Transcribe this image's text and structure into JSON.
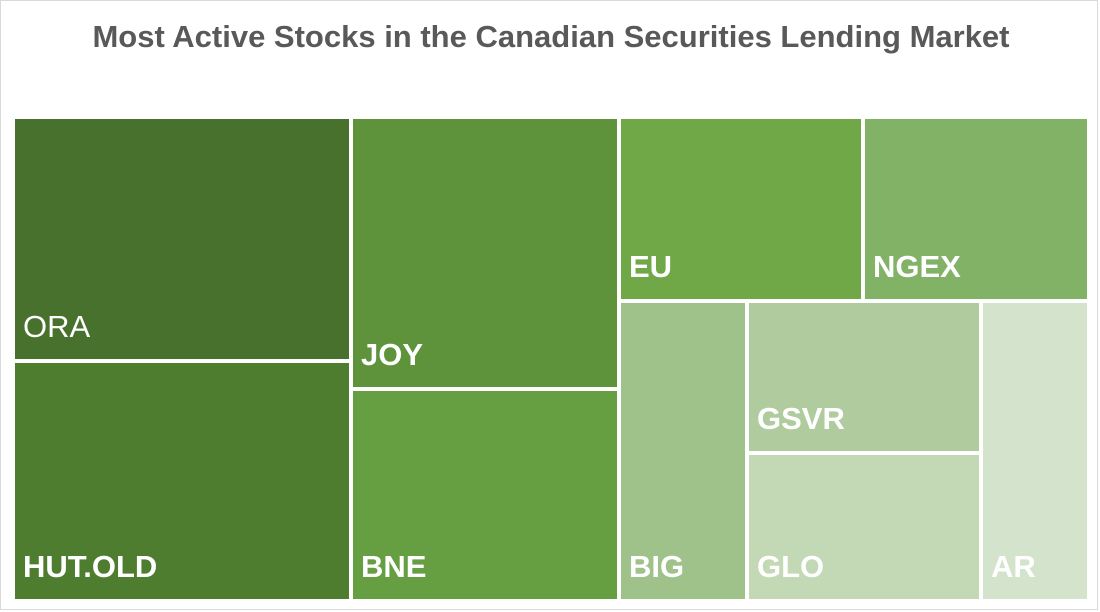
{
  "chart_data": {
    "type": "treemap",
    "title": "Most Active Stocks in the Canadian Securities Lending Market",
    "items": [
      {
        "label": "ORA",
        "value": 16.0,
        "color": "#48712e"
      },
      {
        "label": "HUT.OLD",
        "value": 11.9,
        "color": "#4f7d30"
      },
      {
        "label": "JOY",
        "value": 12.6,
        "color": "#5e933c"
      },
      {
        "label": "BNE",
        "value": 9.7,
        "color": "#669e42"
      },
      {
        "label": "EU",
        "value": 6.8,
        "color": "#70a848"
      },
      {
        "label": "NGEX",
        "value": 6.1,
        "color": "#82b266"
      },
      {
        "label": "BIG",
        "value": 5.9,
        "color": "#9fc18a"
      },
      {
        "label": "GSVR",
        "value": 5.4,
        "color": "#b0cc9f"
      },
      {
        "label": "GLO",
        "value": 5.2,
        "color": "#c3d8b5"
      },
      {
        "label": "AR",
        "value": 3.8,
        "color": "#d4e3cb"
      }
    ]
  }
}
